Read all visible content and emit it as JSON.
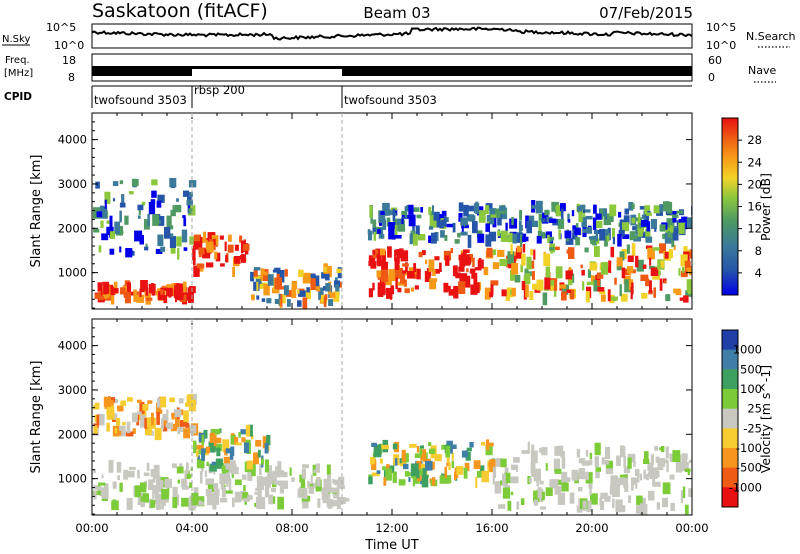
{
  "header": {
    "site": "Saskatoon (fitACF)",
    "beam": "Beam 03",
    "date": "07/Feb/2015"
  },
  "top_panels": {
    "nsky_label": "N.Sky",
    "nsearch_label": "N.Search",
    "nsky_ticks": [
      "10^5",
      "10^0"
    ],
    "nsearch_ticks": [
      "10^5",
      "10^0"
    ],
    "freq_label_1": "Freq.",
    "freq_label_2": "[MHz]",
    "freq_ticks": [
      "18",
      "8"
    ],
    "nave_label": "Nave",
    "nave_ticks": [
      "60",
      "0"
    ],
    "cpid_label": "CPID",
    "cpid_segments": [
      {
        "name": "twofsound 3503",
        "start_h": 0.0,
        "end_h": 4.0
      },
      {
        "name": "rbsp 200",
        "start_h": 4.0,
        "end_h": 10.0
      },
      {
        "name": "twofsound 3503",
        "start_h": 10.0,
        "end_h": 24.0
      }
    ]
  },
  "chart_data": [
    {
      "type": "heatmap",
      "name": "power",
      "ylabel": "Slant Range [km]",
      "ylim": [
        180,
        4600
      ],
      "yticks": [
        1000,
        2000,
        3000,
        4000
      ],
      "colorbar_label": "Power [dB]",
      "colorbar_ticks": [
        4,
        8,
        12,
        16,
        20,
        24,
        28
      ],
      "colors": [
        "#0000e8",
        "#2455a8",
        "#3c7a9a",
        "#4e9a62",
        "#8cc83c",
        "#f2d228",
        "#f79a18",
        "#ee5a14",
        "#e81010"
      ],
      "regions": [
        {
          "t0": 0.0,
          "t1": 4.0,
          "r0": 400,
          "r1": 700,
          "level": "high"
        },
        {
          "t0": 0.0,
          "t1": 4.0,
          "r0": 1400,
          "r1": 3100,
          "level": "low"
        },
        {
          "t0": 4.0,
          "t1": 6.3,
          "r0": 1000,
          "r1": 1800,
          "level": "high"
        },
        {
          "t0": 6.3,
          "t1": 9.9,
          "r0": 300,
          "r1": 1100,
          "level": "mid"
        },
        {
          "t0": 11.0,
          "t1": 16.0,
          "r0": 500,
          "r1": 1500,
          "level": "high"
        },
        {
          "t0": 16.0,
          "t1": 24.0,
          "r0": 400,
          "r1": 1600,
          "level": "mixed"
        },
        {
          "t0": 11.0,
          "t1": 24.0,
          "r0": 1700,
          "r1": 2500,
          "level": "low"
        }
      ]
    },
    {
      "type": "heatmap",
      "name": "velocity",
      "xlabel": "Time UT",
      "ylabel": "Slant Range [km]",
      "xlim": [
        0,
        24
      ],
      "xticks": [
        "00:00",
        "04:00",
        "08:00",
        "12:00",
        "16:00",
        "20:00",
        "00:00"
      ],
      "ylim": [
        180,
        4600
      ],
      "yticks": [
        1000,
        2000,
        3000,
        4000
      ],
      "colorbar_label": "Velocity [m s^-1]",
      "colorbar_ticks": [
        1000,
        500,
        100,
        25,
        -25,
        -100,
        -500,
        -1000
      ],
      "colors": [
        "#2040a8",
        "#3f7ea6",
        "#3ea060",
        "#7ccc3a",
        "#c8c8c0",
        "#f7cc30",
        "#f7961e",
        "#ef5a14",
        "#e81010"
      ],
      "regions": [
        {
          "t0": 0.0,
          "t1": 10.0,
          "r0": 400,
          "r1": 1300,
          "level": "ground-scatter"
        },
        {
          "t0": 0.0,
          "t1": 4.0,
          "r0": 2000,
          "r1": 2800,
          "level": "negative"
        },
        {
          "t0": 4.0,
          "t1": 7.0,
          "r0": 1200,
          "r1": 2100,
          "level": "positive"
        },
        {
          "t0": 11.0,
          "t1": 16.0,
          "r0": 900,
          "r1": 1800,
          "level": "positive"
        },
        {
          "t0": 16.0,
          "t1": 24.0,
          "r0": 300,
          "r1": 1700,
          "level": "ground-scatter"
        }
      ]
    }
  ]
}
